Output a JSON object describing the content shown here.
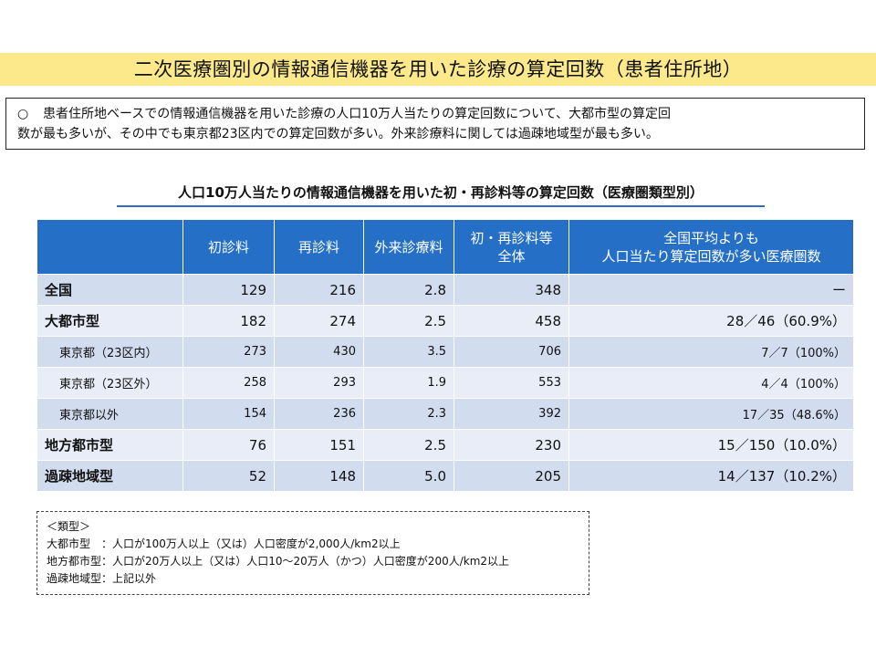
{
  "title": "二次医療圏別の情報通信機器を用いた診療の算定回数（患者住所地）",
  "summary": {
    "bullet": "○",
    "line1": "患者住所地ベースでの情報通信機器を用いた診療の人口10万人当たりの算定回数について、大都市型の算定回",
    "line2": "数が最も多いが、その中でも東京都23区内での算定回数が多い。外来診療料に関しては過疎地域型が最も多い。"
  },
  "table": {
    "title": "人口10万人当たりの情報通信機器を用いた初・再診料等の算定回数（医療圏類型別）",
    "headers": [
      "",
      "初診料",
      "再診料",
      "外来診療料",
      "初・再診料等\n全体",
      "全国平均よりも\n人口当たり算定回数が多い医療圏数"
    ],
    "rows": [
      {
        "label": "全国",
        "sub": false,
        "shade": "dark",
        "values": [
          "129",
          "216",
          "2.8",
          "348",
          "ー"
        ]
      },
      {
        "label": "大都市型",
        "sub": false,
        "shade": "light",
        "values": [
          "182",
          "274",
          "2.5",
          "458",
          "28／46（60.9%）"
        ]
      },
      {
        "label": "東京都（23区内）",
        "sub": true,
        "shade": "dark",
        "values": [
          "273",
          "430",
          "3.5",
          "706",
          "7／7（100%）"
        ]
      },
      {
        "label": "東京都（23区外）",
        "sub": true,
        "shade": "light",
        "values": [
          "258",
          "293",
          "1.9",
          "553",
          "4／4（100%）"
        ]
      },
      {
        "label": "東京都以外",
        "sub": true,
        "shade": "dark",
        "values": [
          "154",
          "236",
          "2.3",
          "392",
          "17／35（48.6%）"
        ]
      },
      {
        "label": "地方都市型",
        "sub": false,
        "shade": "light",
        "values": [
          "76",
          "151",
          "2.5",
          "230",
          "15／150（10.0%）"
        ]
      },
      {
        "label": "過疎地域型",
        "sub": false,
        "shade": "dark",
        "values": [
          "52",
          "148",
          "5.0",
          "205",
          "14／137（10.2%）"
        ]
      }
    ]
  },
  "legend": {
    "heading": "＜類型＞",
    "lines": [
      "大都市型　：人口が100万人以上（又は）人口密度が2,000人/km2以上",
      "地方都市型：人口が20万人以上（又は）人口10～20万人（かつ）人口密度が200人/km2以上",
      "過疎地域型：上記以外"
    ]
  }
}
